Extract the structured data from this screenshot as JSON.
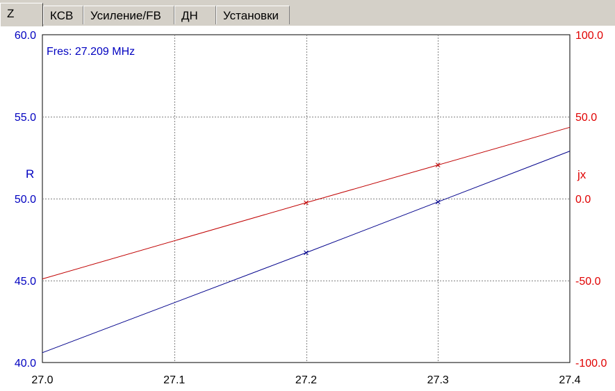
{
  "tabs": [
    {
      "label": "Z",
      "active": true
    },
    {
      "label": "КСВ",
      "active": false
    },
    {
      "label": "Усиление/FB",
      "active": false
    },
    {
      "label": "ДН",
      "active": false
    },
    {
      "label": "Установки",
      "active": false
    }
  ],
  "annotation": "Fres: 27.209 MHz",
  "chart_data": {
    "type": "line",
    "x_ticks": [
      "27.0",
      "27.1",
      "27.2",
      "27.3",
      "27.4"
    ],
    "xlim": [
      27.0,
      27.4
    ],
    "left_axis": {
      "label": "R",
      "ylim": [
        40.0,
        60.0
      ],
      "ticks": [
        "40.0",
        "45.0",
        "50.0",
        "55.0",
        "60.0"
      ],
      "color": "#0000c0"
    },
    "right_axis": {
      "label": "jx",
      "ylim": [
        -100.0,
        100.0
      ],
      "ticks": [
        "-100.0",
        "-50.0",
        "0.0",
        "50.0",
        "100.0"
      ],
      "color": "#e00000"
    },
    "grid": true,
    "series": [
      {
        "axis": "left",
        "color": "#00008b",
        "x": [
          27.0,
          27.2,
          27.3,
          27.4
        ],
        "y": [
          40.6,
          46.7,
          49.8,
          52.9
        ],
        "markers_at": [
          27.2,
          27.3
        ]
      },
      {
        "axis": "right",
        "color": "#c00000",
        "x": [
          27.0,
          27.2,
          27.3,
          27.4
        ],
        "y": [
          -49.0,
          -2.5,
          20.5,
          43.5
        ],
        "markers_at": [
          27.2,
          27.3
        ]
      }
    ]
  }
}
